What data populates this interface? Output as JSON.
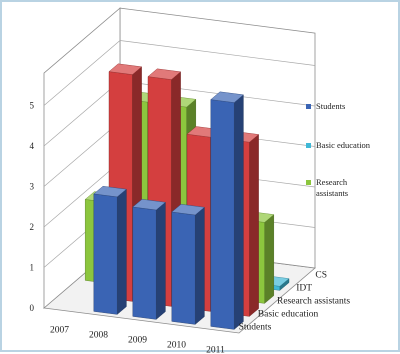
{
  "chart_data": {
    "type": "bar",
    "subtype": "3d-column",
    "years": [
      "2007",
      "2008",
      "2009",
      "2010",
      "2011"
    ],
    "series_depth_labels": [
      "CS",
      "IDT",
      "Research assistants",
      "Basic education",
      "Students"
    ],
    "y_ticks": [
      "0",
      "1",
      "2",
      "3",
      "4",
      "5"
    ],
    "ylim": [
      0,
      5.8
    ],
    "grid": true,
    "legend": {
      "placement": "right",
      "entries": [
        {
          "label": "Students",
          "color": "#3a64b4"
        },
        {
          "label": "Basic education",
          "color": "#3fb8d6"
        },
        {
          "label": "Research assistants",
          "color": "#8cc63e"
        }
      ]
    },
    "series": [
      {
        "color": "#3a64b4",
        "values": [
          0,
          2.9,
          2.7,
          2.7,
          5.6
        ]
      },
      {
        "color": "#d43f3f",
        "values": [
          0,
          5.6,
          5.6,
          4.3,
          4.3
        ]
      },
      {
        "color": "#8cc63e",
        "values": [
          2.0,
          4.6,
          4.6,
          3.3,
          2.0
        ]
      },
      {
        "color": "#3fb8d6",
        "values": [
          0.9,
          0.9,
          0.9,
          0.9,
          0.1
        ]
      },
      {
        "color": "#8a5cb8",
        "values": [
          1.9,
          0.8,
          0.0,
          0.0,
          0.0
        ]
      }
    ]
  }
}
